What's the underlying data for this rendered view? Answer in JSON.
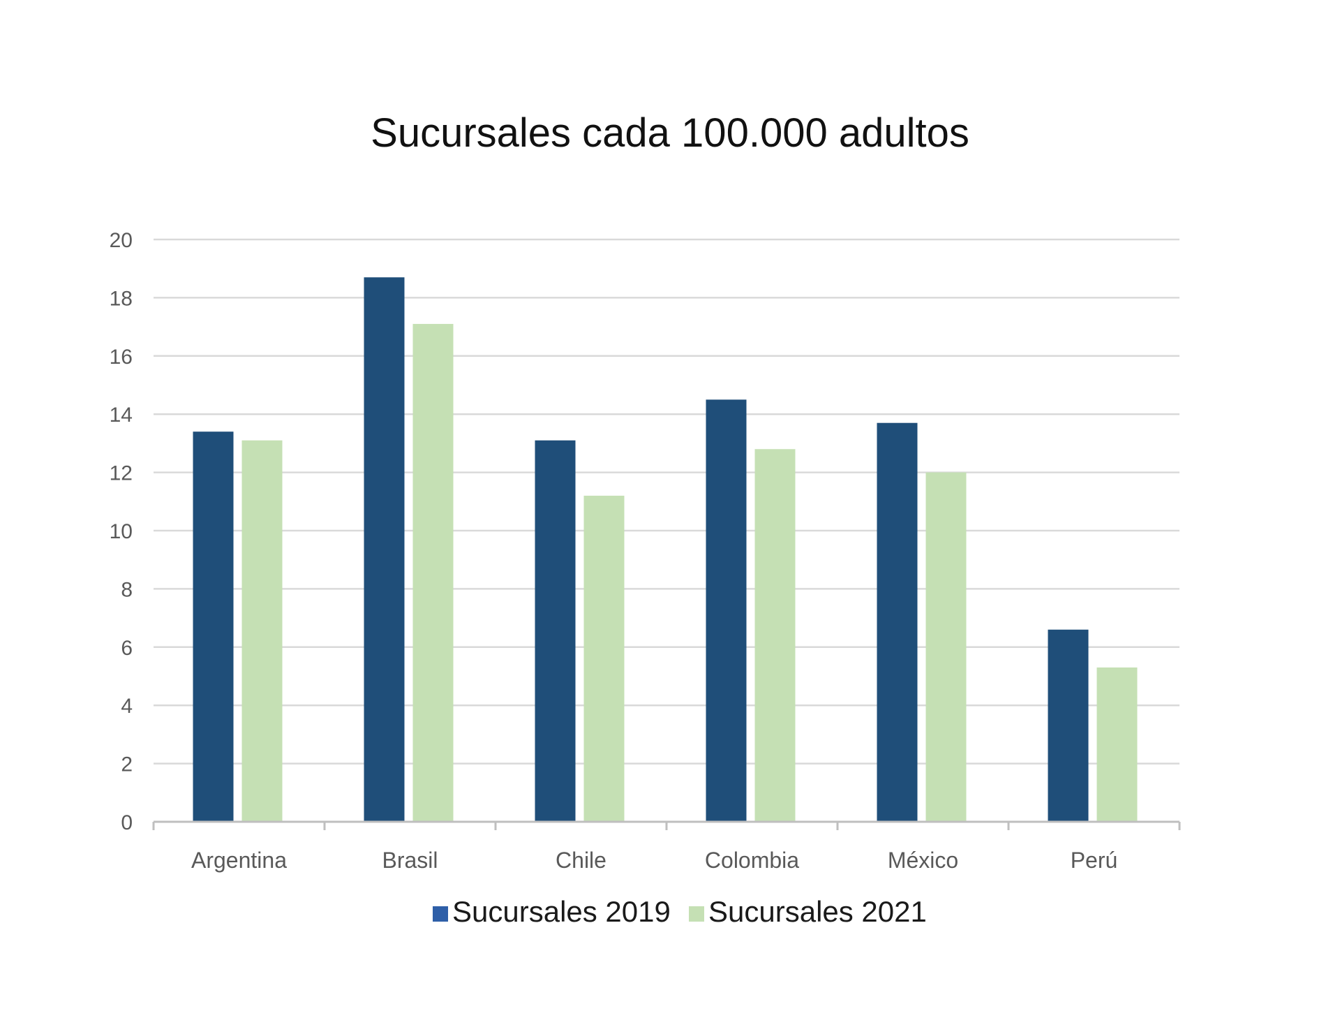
{
  "colors": {
    "series_2019": "#1f4e79",
    "series_2021": "#c5e0b4",
    "legend_2019_swatch": "#2e5fa8",
    "gridline": "#d9d9d9",
    "axis": "#bfbfbf",
    "background": "#ffffff"
  },
  "chart_data": {
    "type": "bar",
    "title": "Sucursales cada 100.000 adultos",
    "xlabel": "",
    "ylabel": "",
    "categories": [
      "Argentina",
      "Brasil",
      "Chile",
      "Colombia",
      "México",
      "Perú"
    ],
    "series": [
      {
        "name": "Sucursales 2019",
        "values": [
          13.4,
          18.7,
          13.1,
          14.5,
          13.7,
          6.6
        ]
      },
      {
        "name": "Sucursales 2021",
        "values": [
          13.1,
          17.1,
          11.2,
          12.8,
          12.0,
          5.3
        ]
      }
    ],
    "ylim": [
      0,
      20
    ],
    "yticks": [
      "0",
      "2",
      "4",
      "6",
      "8",
      "10",
      "12",
      "14",
      "16",
      "18",
      "20"
    ],
    "grid": true,
    "legend_position": "bottom"
  }
}
